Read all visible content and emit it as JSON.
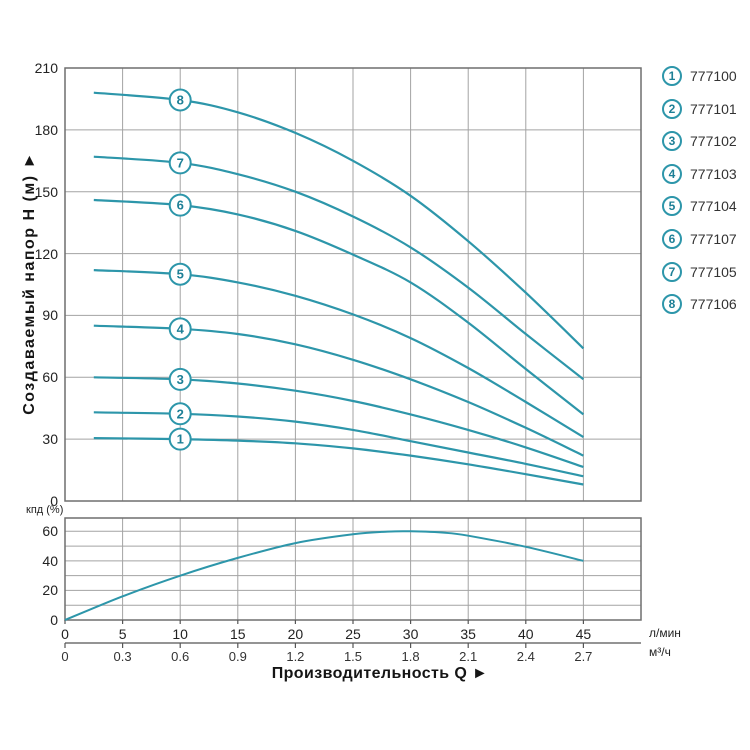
{
  "labels": {
    "y_title": "Создаваемый напор Н (м) ►",
    "x_title": "Производительность Q ►",
    "eff_label": "кпд (%)",
    "unit_lmin": "л/мин",
    "unit_m3h": "м³/ч"
  },
  "colors": {
    "curve": "#2D96AA",
    "curve_label_text": "#1d7f96",
    "grid": "#a3a3a3",
    "border": "#6f6f6f",
    "tick_text": "#222222",
    "legend_text": "#333333",
    "background": "#ffffff"
  },
  "legend": {
    "items": [
      {
        "num": "1",
        "model": "777100"
      },
      {
        "num": "2",
        "model": "777101"
      },
      {
        "num": "3",
        "model": "777102"
      },
      {
        "num": "4",
        "model": "777103"
      },
      {
        "num": "5",
        "model": "777104"
      },
      {
        "num": "6",
        "model": "777107"
      },
      {
        "num": "7",
        "model": "777105"
      },
      {
        "num": "8",
        "model": "777106"
      }
    ]
  },
  "chart_data": [
    {
      "type": "line",
      "name": "head-flow-curves",
      "ylabel": "Создаваемый напор Н (м)",
      "xlabel": "Производительность Q",
      "ylim": [
        0,
        210
      ],
      "xlim": [
        0,
        50
      ],
      "y_ticks": [
        0,
        30,
        60,
        90,
        120,
        150,
        180,
        210
      ],
      "x_ticks_lmin": [
        0,
        5,
        10,
        15,
        20,
        25,
        30,
        35,
        40,
        45
      ],
      "x_ticks_m3h": [
        "0",
        "0.3",
        "0.6",
        "0.9",
        "1.2",
        "1.5",
        "1.8",
        "2.1",
        "2.4",
        "2.7"
      ],
      "grid": true,
      "label_q": 10,
      "series": [
        {
          "label": "1",
          "name": "777100",
          "points": [
            [
              2.5,
              30.5
            ],
            [
              10,
              30
            ],
            [
              15,
              29.3
            ],
            [
              20,
              28
            ],
            [
              25,
              25.5
            ],
            [
              30,
              22
            ],
            [
              35,
              17.8
            ],
            [
              40,
              13
            ],
            [
              45,
              8
            ]
          ]
        },
        {
          "label": "2",
          "name": "777101",
          "points": [
            [
              2.5,
              43
            ],
            [
              10,
              42.3
            ],
            [
              15,
              41
            ],
            [
              20,
              38.5
            ],
            [
              25,
              34.5
            ],
            [
              30,
              29
            ],
            [
              35,
              23.5
            ],
            [
              40,
              18
            ],
            [
              45,
              12
            ]
          ]
        },
        {
          "label": "3",
          "name": "777102",
          "points": [
            [
              2.5,
              60
            ],
            [
              10,
              59
            ],
            [
              15,
              57
            ],
            [
              20,
              53.5
            ],
            [
              25,
              48.5
            ],
            [
              30,
              42
            ],
            [
              35,
              34.5
            ],
            [
              40,
              26
            ],
            [
              45,
              16.5
            ]
          ]
        },
        {
          "label": "4",
          "name": "777103",
          "points": [
            [
              2.5,
              85
            ],
            [
              10,
              83.5
            ],
            [
              15,
              81
            ],
            [
              20,
              76
            ],
            [
              25,
              68.5
            ],
            [
              30,
              59
            ],
            [
              35,
              48
            ],
            [
              40,
              35.5
            ],
            [
              45,
              22
            ]
          ]
        },
        {
          "label": "5",
          "name": "777104",
          "points": [
            [
              2.5,
              112
            ],
            [
              10,
              110
            ],
            [
              15,
              106
            ],
            [
              20,
              99.5
            ],
            [
              25,
              90.5
            ],
            [
              30,
              79
            ],
            [
              35,
              64.5
            ],
            [
              40,
              48
            ],
            [
              45,
              31
            ]
          ]
        },
        {
          "label": "6",
          "name": "777107",
          "points": [
            [
              2.5,
              146
            ],
            [
              10,
              143.5
            ],
            [
              15,
              139
            ],
            [
              20,
              131
            ],
            [
              25,
              119.5
            ],
            [
              30,
              106
            ],
            [
              35,
              86.5
            ],
            [
              40,
              64
            ],
            [
              45,
              42
            ]
          ]
        },
        {
          "label": "7",
          "name": "777105",
          "points": [
            [
              2.5,
              167
            ],
            [
              10,
              164
            ],
            [
              15,
              158.5
            ],
            [
              20,
              150
            ],
            [
              25,
              138
            ],
            [
              30,
              123
            ],
            [
              35,
              103.5
            ],
            [
              40,
              81
            ],
            [
              45,
              59
            ]
          ]
        },
        {
          "label": "8",
          "name": "777106",
          "points": [
            [
              2.5,
              198
            ],
            [
              10,
              194.5
            ],
            [
              15,
              188.5
            ],
            [
              20,
              178.5
            ],
            [
              25,
              165
            ],
            [
              30,
              148
            ],
            [
              35,
              126
            ],
            [
              40,
              101
            ],
            [
              45,
              74
            ]
          ]
        }
      ]
    },
    {
      "type": "line",
      "name": "efficiency-curve",
      "ylabel": "кпд (%)",
      "ylim": [
        0,
        69
      ],
      "xlim": [
        0,
        50
      ],
      "y_ticks": [
        0,
        20,
        40,
        60
      ],
      "grid": true,
      "series": [
        {
          "name": "КПД",
          "points": [
            [
              0,
              0
            ],
            [
              5,
              16
            ],
            [
              10,
              30
            ],
            [
              15,
              42
            ],
            [
              20,
              52
            ],
            [
              25,
              58
            ],
            [
              28,
              59.8
            ],
            [
              30,
              60
            ],
            [
              33,
              59
            ],
            [
              35,
              57
            ],
            [
              40,
              49.5
            ],
            [
              45,
              40
            ]
          ]
        }
      ]
    }
  ]
}
